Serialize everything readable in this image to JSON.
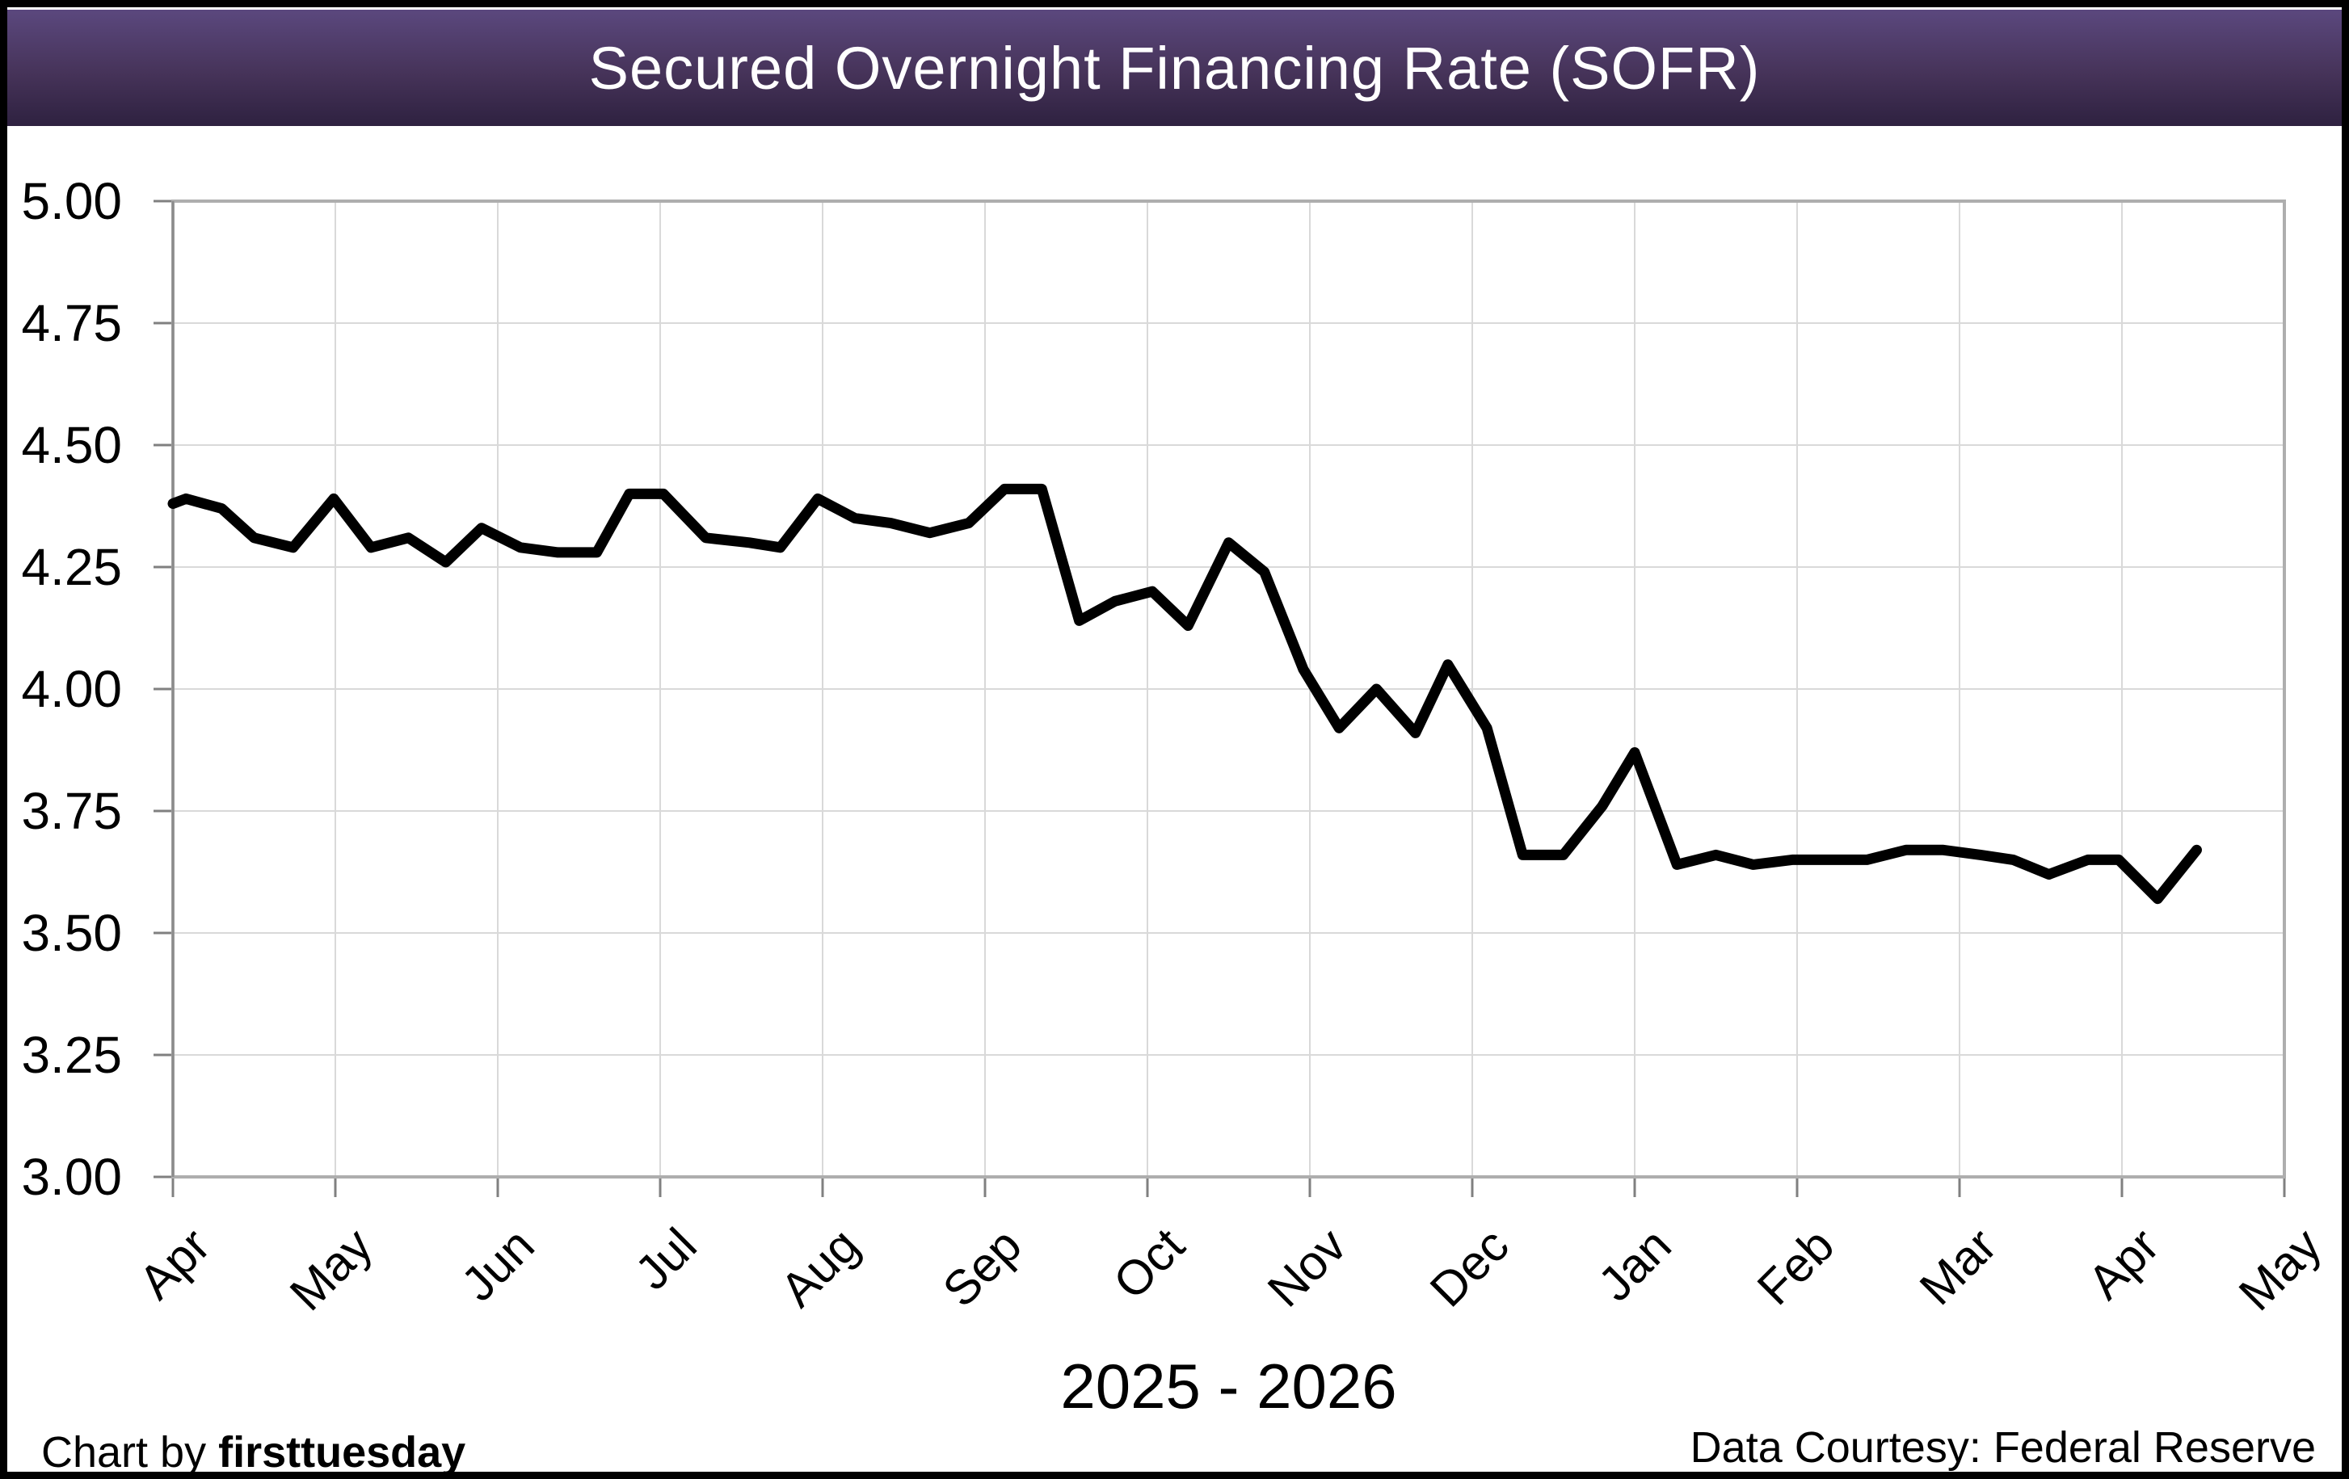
{
  "header": {
    "title": "Secured Overnight Financing Rate (SOFR)"
  },
  "footer": {
    "credit_prefix": "Chart by ",
    "credit_brand": "firsttuesday",
    "data_courtesy": "Data Courtesy: Federal Reserve"
  },
  "colors": {
    "header_gradient_top": "#5b487e",
    "header_gradient_mid": "#463359",
    "header_gradient_bottom": "#2e2140",
    "grid": "#d9d9d9",
    "plot_border": "#aeaeae",
    "axis_line": "#8c8c8c",
    "tick": "#808080",
    "line": "#000000"
  },
  "chart_data": {
    "type": "line",
    "title": "Secured Overnight Financing Rate (SOFR)",
    "xlabel": "2025 - 2026",
    "ylabel": "",
    "x_tick_labels": [
      "Apr",
      "May",
      "Jun",
      "Jul",
      "Aug",
      "Sep",
      "Oct",
      "Nov",
      "Dec",
      "Jan",
      "Feb",
      "Mar",
      "Apr",
      "May"
    ],
    "x_range_months": [
      0,
      13
    ],
    "y_tick_labels": [
      "5.00",
      "4.75",
      "4.50",
      "4.25",
      "4.00",
      "3.75",
      "3.50",
      "3.25",
      "3.00"
    ],
    "ylim": [
      3.0,
      5.0
    ],
    "ytick_step": 0.25,
    "grid": true,
    "legend": "none",
    "series": [
      {
        "name": "SOFR",
        "points": [
          [
            0.0,
            4.38
          ],
          [
            0.08,
            4.39
          ],
          [
            0.3,
            4.37
          ],
          [
            0.5,
            4.31
          ],
          [
            0.74,
            4.29
          ],
          [
            0.99,
            4.39
          ],
          [
            1.22,
            4.29
          ],
          [
            1.45,
            4.31
          ],
          [
            1.68,
            4.26
          ],
          [
            1.9,
            4.33
          ],
          [
            2.14,
            4.29
          ],
          [
            2.37,
            4.28
          ],
          [
            2.61,
            4.28
          ],
          [
            2.81,
            4.4
          ],
          [
            3.02,
            4.4
          ],
          [
            3.28,
            4.31
          ],
          [
            3.55,
            4.3
          ],
          [
            3.74,
            4.29
          ],
          [
            3.97,
            4.39
          ],
          [
            4.2,
            4.35
          ],
          [
            4.42,
            4.34
          ],
          [
            4.66,
            4.32
          ],
          [
            4.9,
            4.34
          ],
          [
            5.12,
            4.41
          ],
          [
            5.35,
            4.41
          ],
          [
            5.58,
            4.14
          ],
          [
            5.8,
            4.18
          ],
          [
            6.03,
            4.2
          ],
          [
            6.25,
            4.13
          ],
          [
            6.5,
            4.3
          ],
          [
            6.72,
            4.24
          ],
          [
            6.96,
            4.04
          ],
          [
            7.18,
            3.92
          ],
          [
            7.41,
            4.0
          ],
          [
            7.65,
            3.91
          ],
          [
            7.85,
            4.05
          ],
          [
            8.09,
            3.92
          ],
          [
            8.31,
            3.66
          ],
          [
            8.56,
            3.66
          ],
          [
            8.8,
            3.76
          ],
          [
            9.0,
            3.87
          ],
          [
            9.26,
            3.64
          ],
          [
            9.5,
            3.66
          ],
          [
            9.73,
            3.64
          ],
          [
            9.97,
            3.65
          ],
          [
            10.2,
            3.65
          ],
          [
            10.43,
            3.65
          ],
          [
            10.67,
            3.67
          ],
          [
            10.9,
            3.67
          ],
          [
            11.13,
            3.66
          ],
          [
            11.33,
            3.65
          ],
          [
            11.55,
            3.62
          ],
          [
            11.79,
            3.65
          ],
          [
            11.98,
            3.65
          ],
          [
            12.22,
            3.57
          ],
          [
            12.46,
            3.67
          ]
        ]
      }
    ]
  }
}
